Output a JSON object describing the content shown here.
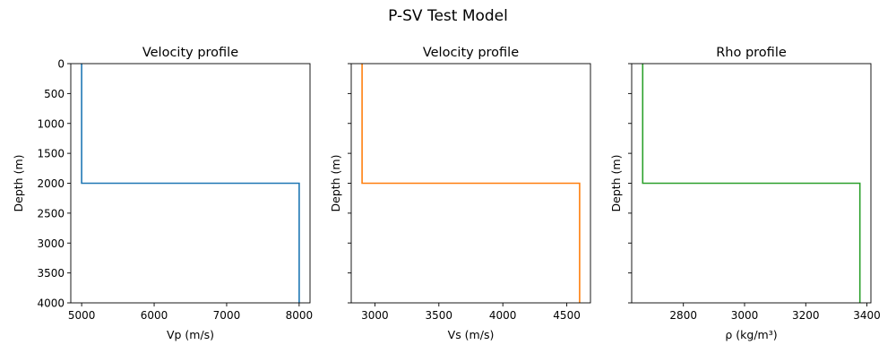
{
  "title": "P-SV Test Model",
  "chart_data": [
    {
      "type": "line",
      "title": "Velocity profile",
      "xlabel": "Vp (m/s)",
      "ylabel": "Depth (m)",
      "xlim": [
        4850,
        8150
      ],
      "ylim": [
        4000,
        0
      ],
      "y_inverted": true,
      "xticks": [
        5000,
        6000,
        7000,
        8000
      ],
      "yticks": [
        0,
        500,
        1000,
        1500,
        2000,
        2500,
        3000,
        3500,
        4000
      ],
      "show_ytick_labels": true,
      "grid": false,
      "color": "#1f77b4",
      "x": [
        5000,
        5000,
        8000,
        8000
      ],
      "y": [
        0,
        2000,
        2000,
        4000
      ]
    },
    {
      "type": "line",
      "title": "Velocity profile",
      "xlabel": "Vs (m/s)",
      "ylabel": "Depth (m)",
      "xlim": [
        2815,
        4685
      ],
      "ylim": [
        4000,
        0
      ],
      "y_inverted": true,
      "xticks": [
        3000,
        3500,
        4000,
        4500
      ],
      "yticks": [
        0,
        500,
        1000,
        1500,
        2000,
        2500,
        3000,
        3500,
        4000
      ],
      "show_ytick_labels": false,
      "grid": false,
      "color": "#ff7f0e",
      "x": [
        2900,
        2900,
        4600,
        4600
      ],
      "y": [
        0,
        2000,
        2000,
        4000
      ]
    },
    {
      "type": "line",
      "title": "Rho profile",
      "xlabel": "ρ (kg/m³)",
      "ylabel": "Depth (m)",
      "xlim": [
        2631,
        3413
      ],
      "ylim": [
        4000,
        0
      ],
      "y_inverted": true,
      "xticks": [
        2800,
        3000,
        3200,
        3400
      ],
      "yticks": [
        0,
        500,
        1000,
        1500,
        2000,
        2500,
        3000,
        3500,
        4000
      ],
      "show_ytick_labels": false,
      "grid": false,
      "color": "#2ca02c",
      "x": [
        2667,
        2667,
        3377,
        3377
      ],
      "y": [
        0,
        2000,
        2000,
        4000
      ]
    }
  ]
}
